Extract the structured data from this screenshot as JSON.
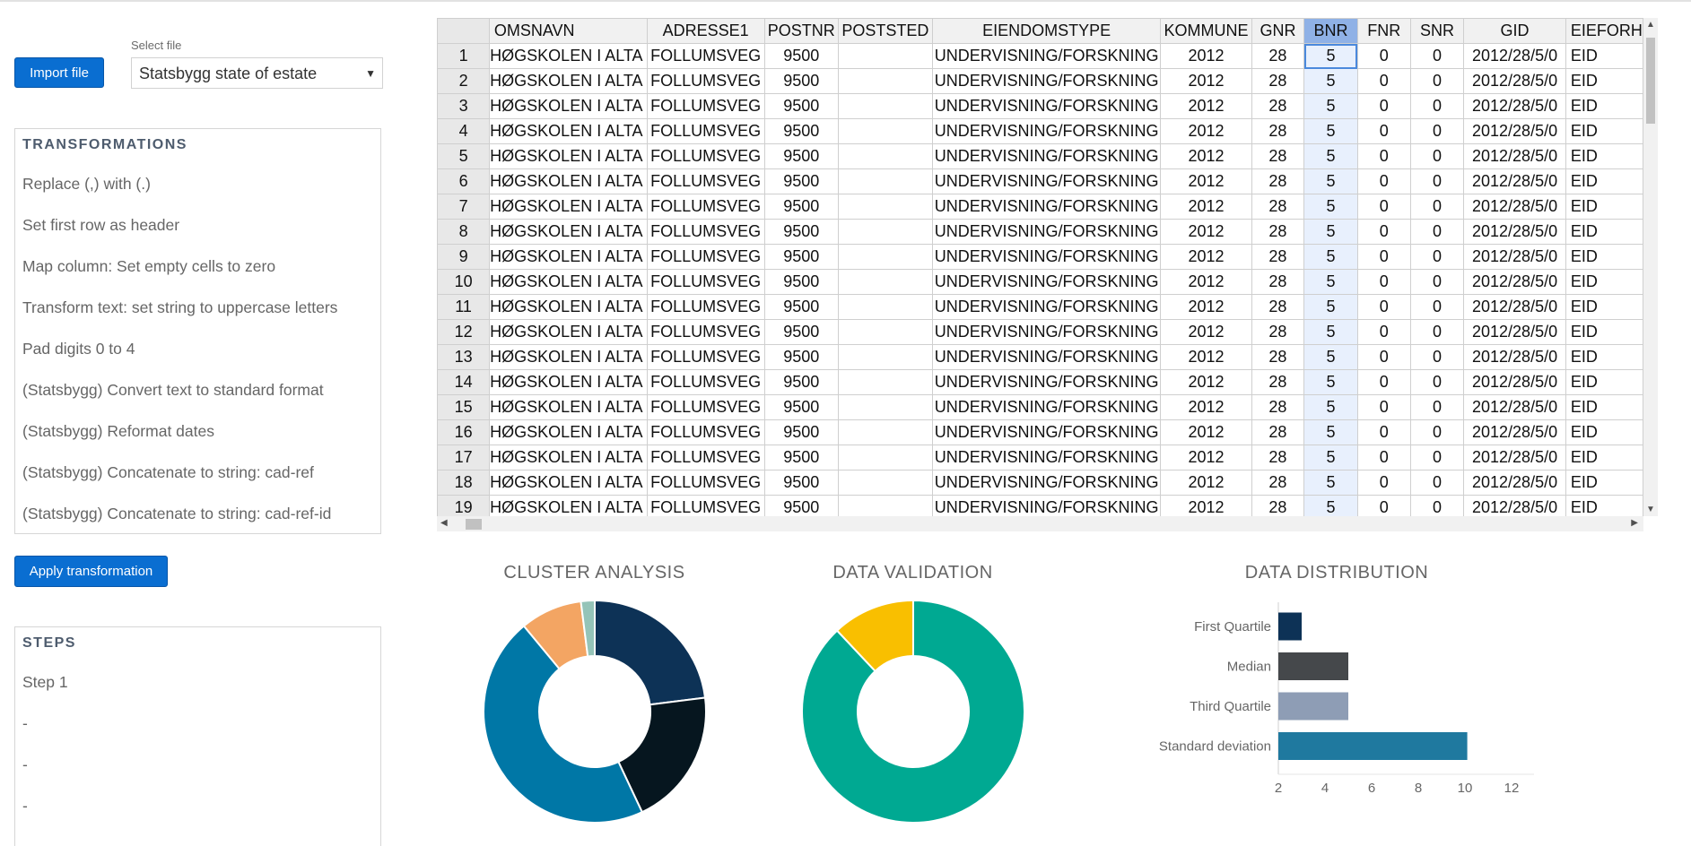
{
  "file_picker": {
    "import_label": "Import file",
    "select_label": "Select file",
    "selected_file": "Statsbygg state of estate"
  },
  "transformations": {
    "title": "TRANSFORMATIONS",
    "items": [
      "Replace (,) with (.)",
      "Set first row as header",
      "Map column: Set empty cells to zero",
      "Transform text: set string to uppercase letters",
      "Pad digits 0 to 4",
      "(Statsbygg) Convert text to standard format",
      "(Statsbygg) Reformat dates",
      "(Statsbygg) Concatenate to string: cad-ref",
      "(Statsbygg) Concatenate to string: cad-ref-id"
    ],
    "apply_label": "Apply transformation"
  },
  "steps": {
    "title": "STEPS",
    "items": [
      "Step 1",
      "-",
      "-",
      "-"
    ]
  },
  "grid": {
    "columns": [
      "OMSNAVN",
      "ADRESSE1",
      "POSTNR",
      "POSTSTED",
      "EIENDOMSTYPE",
      "KOMMUNE",
      "GNR",
      "BNR",
      "FNR",
      "SNR",
      "GID",
      "EIEFORH"
    ],
    "selected_column": "BNR",
    "row": {
      "omsnavn": "HØGSKOLEN I ALTA",
      "adresse1": "FOLLUMSVEG",
      "postnr": "9500",
      "poststed": "",
      "eiendomstype": "UNDERVISNING/FORSKNING",
      "kommune": "2012",
      "gnr": "28",
      "bnr": "5",
      "fnr": "0",
      "snr": "0",
      "gid": "2012/28/5/0",
      "eieforh": "EID"
    },
    "row_numbers": [
      "1",
      "2",
      "3",
      "4",
      "5",
      "6",
      "7",
      "8",
      "9",
      "10",
      "11",
      "12",
      "13",
      "14",
      "15",
      "16",
      "17",
      "18",
      "19"
    ]
  },
  "charts": {
    "cluster": {
      "title": "CLUSTER ANALYSIS",
      "chart_data": {
        "type": "pie",
        "values": [
          23,
          20,
          46,
          9,
          2
        ],
        "colors": [
          "#0d3256",
          "#06161f",
          "#0077a6",
          "#f3a563",
          "#95c4b8"
        ]
      }
    },
    "validation": {
      "title": "DATA VALIDATION",
      "chart_data": {
        "type": "pie",
        "values": [
          88,
          12
        ],
        "colors": [
          "#00a992",
          "#f9bf00"
        ]
      }
    },
    "distribution": {
      "title": "DATA DISTRIBUTION",
      "chart_data": {
        "type": "bar",
        "orientation": "horizontal",
        "categories": [
          "First Quartile",
          "Median",
          "Third Quartile",
          "Standard deviation"
        ],
        "values": [
          3,
          5,
          5,
          10.1
        ],
        "xlim": [
          2,
          13
        ],
        "xticks": [
          "2",
          "4",
          "6",
          "8",
          "10",
          "12"
        ],
        "colors": [
          "#0d3256",
          "#45484b",
          "#8e9db5",
          "#1f799f"
        ]
      }
    }
  }
}
